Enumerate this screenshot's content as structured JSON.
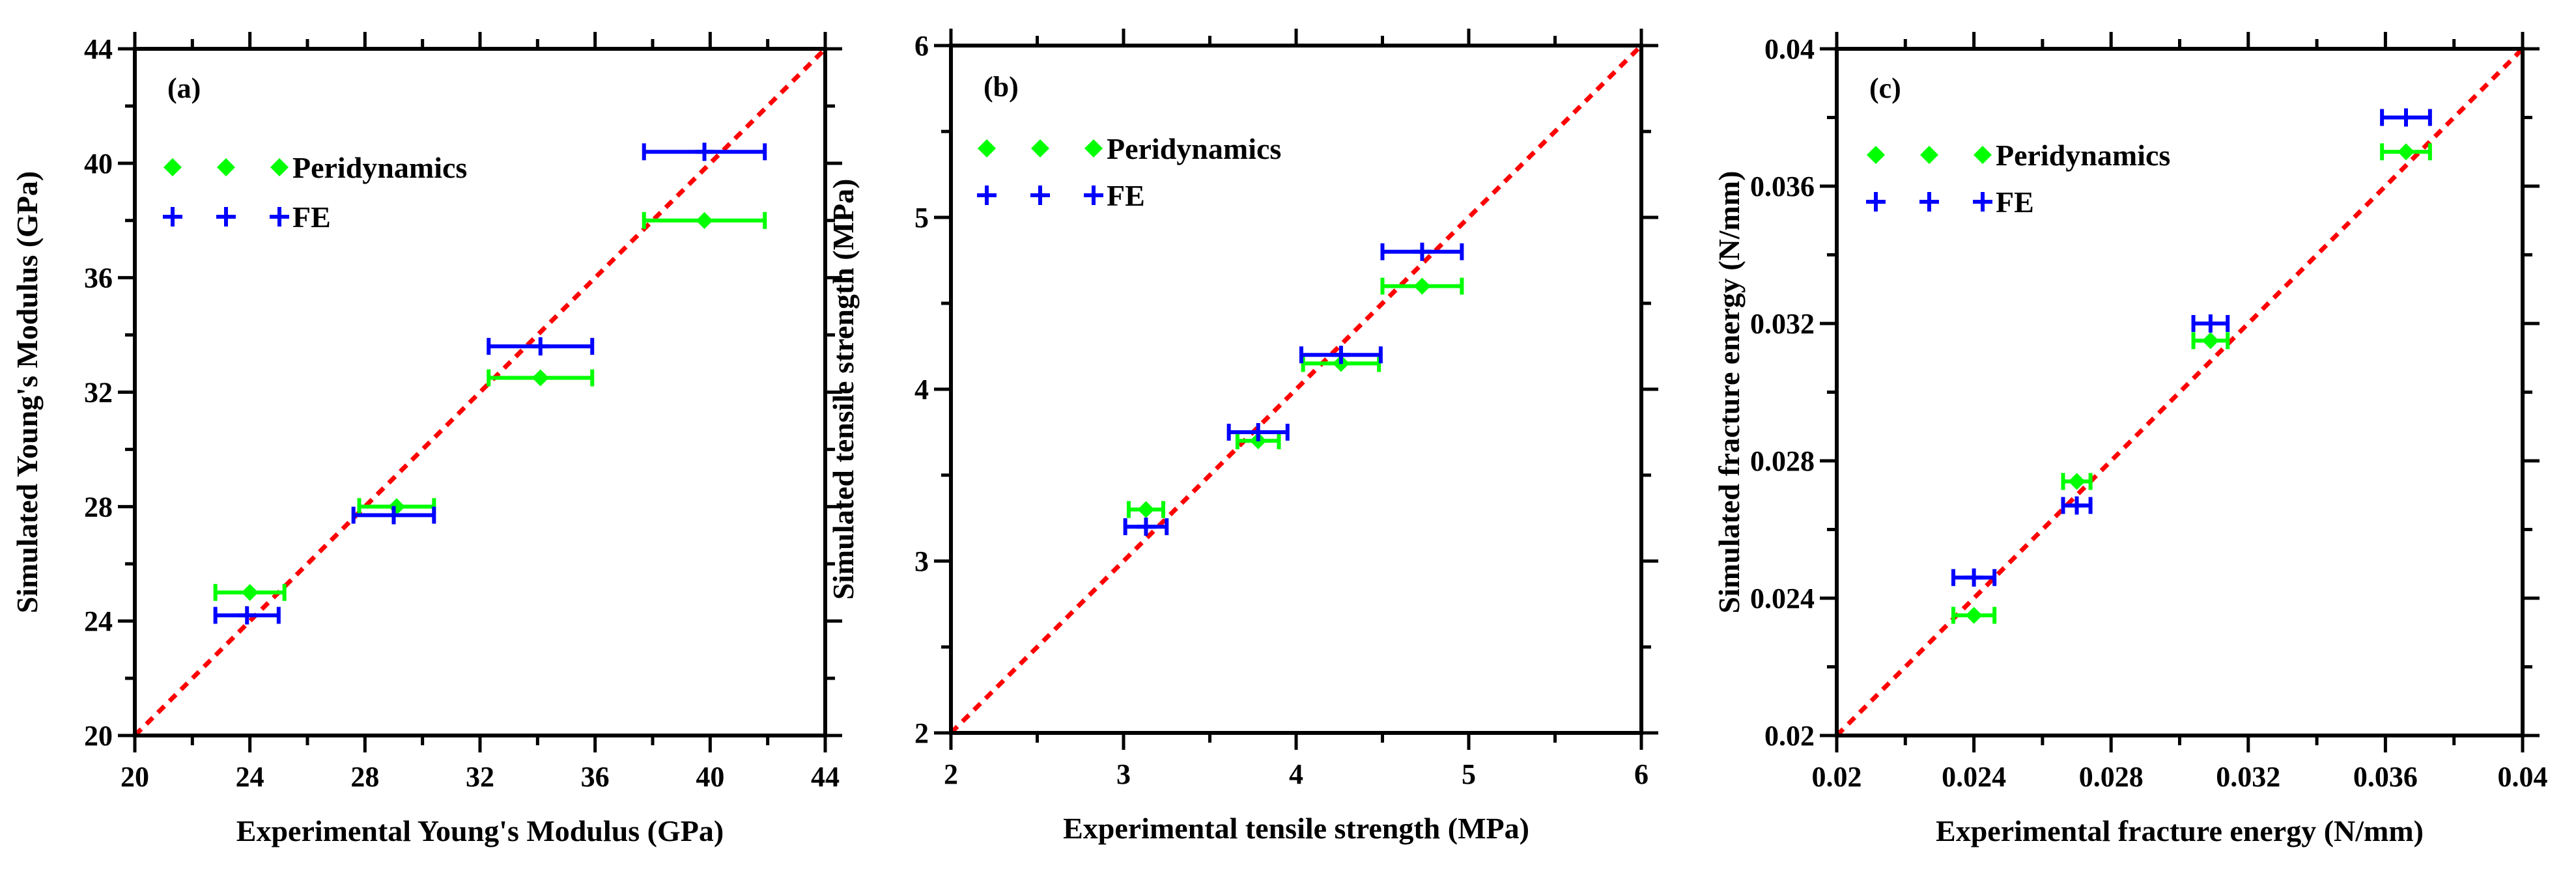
{
  "colors": {
    "peri": "#00ff00",
    "fe": "#0000ff",
    "ideal": "#ff0000",
    "axis": "#000000"
  },
  "chart_data": [
    {
      "type": "scatter",
      "panel_label": "(a)",
      "xlabel": "Experimental Young's Modulus (GPa)",
      "ylabel": "Simulated Young's Modulus (GPa)",
      "xlim": [
        20,
        44
      ],
      "ylim": [
        20,
        44
      ],
      "major_ticks": [
        20,
        24,
        28,
        32,
        36,
        40,
        44
      ],
      "tick_labels": [
        "20",
        "24",
        "28",
        "32",
        "36",
        "40",
        "44"
      ],
      "reference_line": "y = x",
      "legend": [
        {
          "name": "Peridynamics",
          "marker": "diamond"
        },
        {
          "name": "FE",
          "marker": "plus"
        }
      ],
      "series": [
        {
          "name": "Peridynamics",
          "x": [
            24.0,
            29.1,
            34.1,
            39.8
          ],
          "y": [
            25.0,
            28.0,
            32.5,
            38.0
          ],
          "xerr": [
            1.2,
            1.3,
            1.8,
            2.1
          ]
        },
        {
          "name": "FE",
          "x": [
            23.9,
            29.0,
            34.1,
            39.8
          ],
          "y": [
            24.2,
            27.7,
            33.6,
            40.4
          ],
          "xerr": [
            1.1,
            1.4,
            1.8,
            2.1
          ]
        }
      ]
    },
    {
      "type": "scatter",
      "panel_label": "(b)",
      "xlabel": "Experimental tensile strength (MPa)",
      "ylabel": "Simulated tensile strength (MPa)",
      "xlim": [
        2,
        6
      ],
      "ylim": [
        2,
        6
      ],
      "major_ticks": [
        2,
        3,
        4,
        5,
        6
      ],
      "tick_labels": [
        "2",
        "3",
        "4",
        "5",
        "6"
      ],
      "reference_line": "y = x",
      "legend": [
        {
          "name": "Peridynamics",
          "marker": "diamond"
        },
        {
          "name": "FE",
          "marker": "plus"
        }
      ],
      "series": [
        {
          "name": "Peridynamics",
          "x": [
            3.13,
            3.78,
            4.26,
            4.73
          ],
          "y": [
            3.3,
            3.7,
            4.15,
            4.6
          ],
          "xerr": [
            0.1,
            0.12,
            0.22,
            0.23
          ]
        },
        {
          "name": "FE",
          "x": [
            3.13,
            3.78,
            4.26,
            4.73
          ],
          "y": [
            3.2,
            3.75,
            4.2,
            4.8
          ],
          "xerr": [
            0.12,
            0.17,
            0.23,
            0.23
          ]
        }
      ]
    },
    {
      "type": "scatter",
      "panel_label": "(c)",
      "xlabel": "Experimental fracture energy (N/mm)",
      "ylabel": "Simulated fracture energy (N/mm)",
      "xlim": [
        0.02,
        0.04
      ],
      "ylim": [
        0.02,
        0.04
      ],
      "major_ticks": [
        0.02,
        0.024,
        0.028,
        0.032,
        0.036,
        0.04
      ],
      "tick_labels": [
        "0.02",
        "0.024",
        "0.028",
        "0.032",
        "0.036",
        "0.04"
      ],
      "reference_line": "y = x",
      "legend": [
        {
          "name": "Peridynamics",
          "marker": "diamond"
        },
        {
          "name": "FE",
          "marker": "plus"
        }
      ],
      "series": [
        {
          "name": "Peridynamics",
          "x": [
            0.024,
            0.027,
            0.0309,
            0.0366
          ],
          "y": [
            0.0235,
            0.0274,
            0.0315,
            0.037
          ],
          "xerr": [
            0.0006,
            0.0004,
            0.0005,
            0.0007
          ]
        },
        {
          "name": "FE",
          "x": [
            0.024,
            0.027,
            0.0309,
            0.0366
          ],
          "y": [
            0.0246,
            0.0267,
            0.032,
            0.038
          ],
          "xerr": [
            0.0006,
            0.0004,
            0.0005,
            0.0007
          ]
        }
      ]
    }
  ]
}
